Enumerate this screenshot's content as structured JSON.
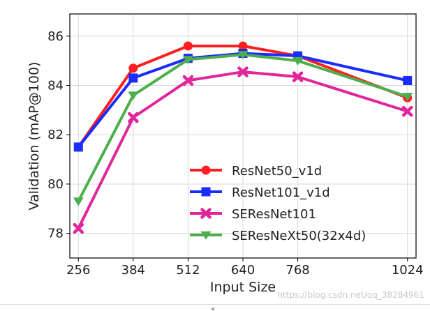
{
  "watermark": "https://blog.csdn.net/qq_38284961",
  "chart_data": {
    "type": "line",
    "title": "",
    "xlabel": "Input Size",
    "ylabel": "Validation (mAP@100)",
    "x": [
      256,
      384,
      512,
      640,
      768,
      1024
    ],
    "x_ticks": [
      "256",
      "384",
      "512",
      "640",
      "768",
      "1024"
    ],
    "y_ticks": [
      "78",
      "80",
      "82",
      "84",
      "86"
    ],
    "xlim": [
      236,
      1044
    ],
    "ylim": [
      77.0,
      86.9
    ],
    "grid": true,
    "legend_position": "lower-center",
    "series": [
      {
        "name": "ResNet50_v1d",
        "color": "#ff1f1f",
        "marker": "circle",
        "values": [
          81.5,
          84.7,
          85.6,
          85.6,
          85.2,
          83.5
        ]
      },
      {
        "name": "ResNet101_v1d",
        "color": "#1a2cff",
        "marker": "square",
        "values": [
          81.5,
          84.3,
          85.1,
          85.3,
          85.2,
          84.2
        ]
      },
      {
        "name": "SEResNet101",
        "color": "#e0269a",
        "marker": "x",
        "values": [
          78.2,
          82.7,
          84.2,
          84.55,
          84.35,
          82.95
        ]
      },
      {
        "name": "SEResNeXt50(32x4d)",
        "color": "#4cae4c",
        "marker": "triangle-down",
        "values": [
          79.3,
          83.6,
          85.05,
          85.25,
          85.0,
          83.55
        ]
      }
    ]
  }
}
